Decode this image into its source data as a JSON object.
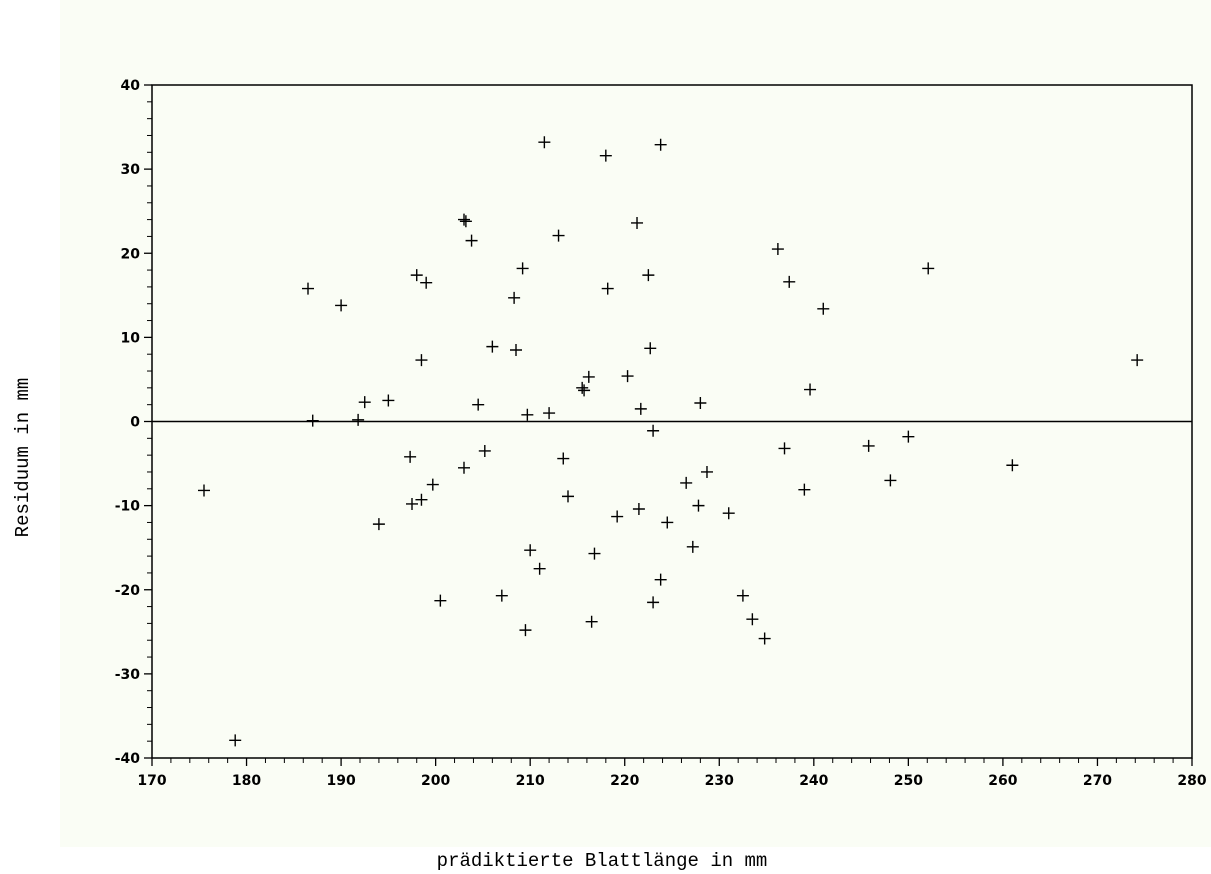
{
  "chart_data": {
    "type": "scatter",
    "title": "",
    "xlabel": "prädiktierte Blattlänge in mm",
    "ylabel": "Residuum in mm",
    "xlim": [
      170,
      280
    ],
    "ylim": [
      -40,
      40
    ],
    "x_ticks": [
      170,
      180,
      190,
      200,
      210,
      220,
      230,
      240,
      250,
      260,
      270,
      280
    ],
    "y_ticks": [
      -40,
      -30,
      -20,
      -10,
      0,
      10,
      20,
      30,
      40
    ],
    "x_tick_labels": [
      "170",
      "180",
      "190",
      "200",
      "210",
      "220",
      "230",
      "240",
      "250",
      "260",
      "270",
      "280"
    ],
    "y_tick_labels": [
      "-40",
      "-30",
      "-20",
      "-10",
      "0",
      "10",
      "20",
      "30",
      "40"
    ],
    "reference_line_y": 0,
    "marker": "plus",
    "grid": false,
    "legend": "none",
    "colors": {
      "plot_background": "#fafdf5",
      "marks": "#000000"
    },
    "points": [
      [
        175.5,
        -8.2
      ],
      [
        178.8,
        -37.9
      ],
      [
        186.5,
        15.8
      ],
      [
        187.0,
        0.1
      ],
      [
        190.0,
        13.8
      ],
      [
        191.8,
        0.2
      ],
      [
        192.5,
        2.3
      ],
      [
        194.0,
        -12.2
      ],
      [
        195.0,
        2.5
      ],
      [
        197.3,
        -4.2
      ],
      [
        197.5,
        -9.8
      ],
      [
        198.0,
        17.4
      ],
      [
        198.5,
        7.3
      ],
      [
        198.5,
        -9.3
      ],
      [
        199.0,
        16.5
      ],
      [
        199.7,
        -7.5
      ],
      [
        200.5,
        -21.3
      ],
      [
        203.0,
        -5.5
      ],
      [
        203.0,
        24.0
      ],
      [
        203.2,
        23.8
      ],
      [
        203.8,
        21.5
      ],
      [
        204.5,
        2.0
      ],
      [
        205.2,
        -3.5
      ],
      [
        206.0,
        8.9
      ],
      [
        207.0,
        -20.7
      ],
      [
        208.3,
        14.7
      ],
      [
        208.5,
        8.5
      ],
      [
        209.2,
        18.2
      ],
      [
        209.5,
        -24.8
      ],
      [
        209.7,
        0.8
      ],
      [
        210.0,
        -15.3
      ],
      [
        211.0,
        -17.5
      ],
      [
        211.5,
        33.2
      ],
      [
        212.0,
        1.0
      ],
      [
        213.0,
        22.1
      ],
      [
        213.5,
        -4.4
      ],
      [
        214.0,
        -8.9
      ],
      [
        215.5,
        4.0
      ],
      [
        215.7,
        3.7
      ],
      [
        216.2,
        5.3
      ],
      [
        216.5,
        -23.8
      ],
      [
        216.8,
        -15.7
      ],
      [
        218.0,
        31.6
      ],
      [
        218.2,
        15.8
      ],
      [
        219.2,
        -11.3
      ],
      [
        220.3,
        5.4
      ],
      [
        221.3,
        23.6
      ],
      [
        221.5,
        -10.4
      ],
      [
        221.7,
        1.5
      ],
      [
        222.5,
        17.4
      ],
      [
        222.7,
        8.7
      ],
      [
        223.0,
        -1.1
      ],
      [
        223.0,
        -21.5
      ],
      [
        223.8,
        32.9
      ],
      [
        223.8,
        -18.8
      ],
      [
        224.5,
        -12.0
      ],
      [
        226.5,
        -7.3
      ],
      [
        227.2,
        -14.9
      ],
      [
        227.8,
        -10.0
      ],
      [
        228.0,
        2.2
      ],
      [
        228.7,
        -6.0
      ],
      [
        231.0,
        -10.9
      ],
      [
        232.5,
        -20.7
      ],
      [
        233.5,
        -23.5
      ],
      [
        234.8,
        -25.8
      ],
      [
        236.2,
        20.5
      ],
      [
        236.9,
        -3.2
      ],
      [
        237.4,
        16.6
      ],
      [
        239.0,
        -8.1
      ],
      [
        239.6,
        3.8
      ],
      [
        241.0,
        13.4
      ],
      [
        245.8,
        -2.9
      ],
      [
        248.1,
        -7.0
      ],
      [
        250.0,
        -1.8
      ],
      [
        252.1,
        18.2
      ],
      [
        261.0,
        -5.2
      ],
      [
        274.2,
        7.3
      ]
    ]
  }
}
